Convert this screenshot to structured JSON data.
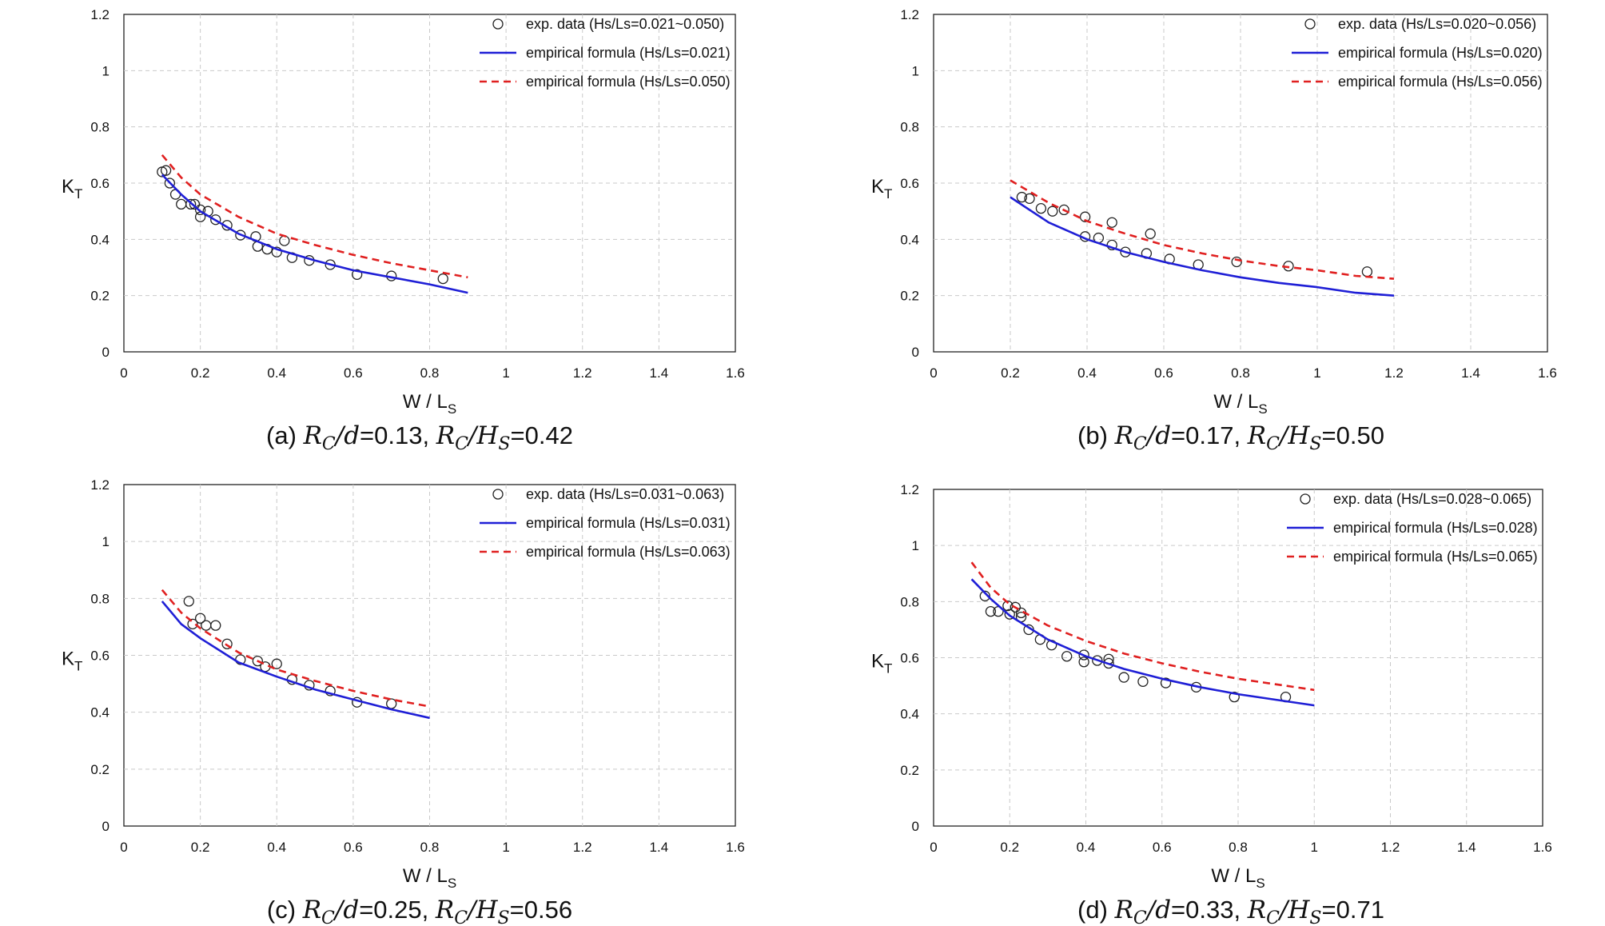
{
  "chart_data": [
    {
      "type": "scatter",
      "panel_label": "(a)",
      "caption": {
        "rc_d": "0.13",
        "rc_hs": "0.42"
      },
      "xlabel": {
        "main": "W / L",
        "sub": "S"
      },
      "ylabel": {
        "main": "K",
        "sub": "T"
      },
      "xlim": [
        0,
        1.6
      ],
      "ylim": [
        0,
        1.2
      ],
      "xticks": [
        "0",
        "0.2",
        "0.4",
        "0.6",
        "0.8",
        "1",
        "1.2",
        "1.4",
        "1.6"
      ],
      "yticks": [
        "0",
        "0.2",
        "0.4",
        "0.6",
        "0.8",
        "1",
        "1.2"
      ],
      "grid": true,
      "legend_position": "top-right",
      "series": [
        {
          "name": "exp. data (Hs/Ls=0.021~0.050)",
          "kind": "markers",
          "x": [
            0.1,
            0.11,
            0.12,
            0.135,
            0.15,
            0.175,
            0.185,
            0.2,
            0.2,
            0.22,
            0.24,
            0.27,
            0.305,
            0.345,
            0.35,
            0.375,
            0.4,
            0.42,
            0.44,
            0.485,
            0.54,
            0.61,
            0.7,
            0.835
          ],
          "y": [
            0.64,
            0.645,
            0.6,
            0.56,
            0.525,
            0.525,
            0.525,
            0.505,
            0.48,
            0.5,
            0.47,
            0.45,
            0.415,
            0.41,
            0.375,
            0.365,
            0.355,
            0.395,
            0.335,
            0.325,
            0.31,
            0.275,
            0.27,
            0.26
          ]
        },
        {
          "name": "empirical formula (Hs/Ls=0.021)",
          "kind": "line",
          "color": "#1f1fd6",
          "x": [
            0.1,
            0.15,
            0.2,
            0.3,
            0.4,
            0.5,
            0.6,
            0.7,
            0.8,
            0.9
          ],
          "y": [
            0.63,
            0.56,
            0.5,
            0.42,
            0.365,
            0.325,
            0.29,
            0.265,
            0.24,
            0.21
          ]
        },
        {
          "name": "empirical formula (Hs/Ls=0.050)",
          "kind": "dashed",
          "color": "#e02020",
          "x": [
            0.1,
            0.15,
            0.2,
            0.3,
            0.4,
            0.5,
            0.6,
            0.7,
            0.8,
            0.9
          ],
          "y": [
            0.7,
            0.62,
            0.56,
            0.48,
            0.42,
            0.38,
            0.345,
            0.315,
            0.29,
            0.265
          ]
        }
      ]
    },
    {
      "type": "scatter",
      "panel_label": "(b)",
      "caption": {
        "rc_d": "0.17",
        "rc_hs": "0.50"
      },
      "xlabel": {
        "main": "W / L",
        "sub": "S"
      },
      "ylabel": {
        "main": "K",
        "sub": "T"
      },
      "xlim": [
        0,
        1.6
      ],
      "ylim": [
        0,
        1.2
      ],
      "xticks": [
        "0",
        "0.2",
        "0.4",
        "0.6",
        "0.8",
        "1",
        "1.2",
        "1.4",
        "1.6"
      ],
      "yticks": [
        "0",
        "0.2",
        "0.4",
        "0.6",
        "0.8",
        "1",
        "1.2"
      ],
      "grid": true,
      "legend_position": "top-right",
      "series": [
        {
          "name": "exp. data (Hs/Ls=0.020~0.056)",
          "kind": "markers",
          "x": [
            0.23,
            0.25,
            0.28,
            0.31,
            0.34,
            0.395,
            0.395,
            0.43,
            0.465,
            0.465,
            0.5,
            0.555,
            0.565,
            0.615,
            0.69,
            0.79,
            0.925,
            1.13
          ],
          "y": [
            0.55,
            0.545,
            0.51,
            0.5,
            0.505,
            0.48,
            0.41,
            0.405,
            0.46,
            0.38,
            0.355,
            0.35,
            0.42,
            0.33,
            0.31,
            0.32,
            0.305,
            0.285
          ]
        },
        {
          "name": "empirical formula (Hs/Ls=0.020)",
          "kind": "line",
          "color": "#1f1fd6",
          "x": [
            0.2,
            0.3,
            0.4,
            0.5,
            0.6,
            0.7,
            0.8,
            0.9,
            1.0,
            1.1,
            1.2
          ],
          "y": [
            0.55,
            0.46,
            0.4,
            0.355,
            0.32,
            0.29,
            0.265,
            0.245,
            0.23,
            0.21,
            0.2
          ]
        },
        {
          "name": "empirical formula (Hs/Ls=0.056)",
          "kind": "dashed",
          "color": "#e02020",
          "x": [
            0.2,
            0.3,
            0.4,
            0.5,
            0.6,
            0.7,
            0.8,
            0.9,
            1.0,
            1.1,
            1.2
          ],
          "y": [
            0.61,
            0.53,
            0.465,
            0.42,
            0.38,
            0.35,
            0.325,
            0.305,
            0.29,
            0.27,
            0.26
          ]
        }
      ]
    },
    {
      "type": "scatter",
      "panel_label": "(c)",
      "caption": {
        "rc_d": "0.25",
        "rc_hs": "0.56"
      },
      "xlabel": {
        "main": "W / L",
        "sub": "S"
      },
      "ylabel": {
        "main": "K",
        "sub": "T"
      },
      "xlim": [
        0,
        1.6
      ],
      "ylim": [
        0,
        1.2
      ],
      "xticks": [
        "0",
        "0.2",
        "0.4",
        "0.6",
        "0.8",
        "1",
        "1.2",
        "1.4",
        "1.6"
      ],
      "yticks": [
        "0",
        "0.2",
        "0.4",
        "0.6",
        "0.8",
        "1",
        "1.2"
      ],
      "grid": true,
      "legend_position": "top-right",
      "series": [
        {
          "name": "exp. data (Hs/Ls=0.031~0.063)",
          "kind": "markers",
          "x": [
            0.17,
            0.18,
            0.2,
            0.215,
            0.24,
            0.27,
            0.305,
            0.35,
            0.37,
            0.4,
            0.44,
            0.485,
            0.54,
            0.61,
            0.7
          ],
          "y": [
            0.79,
            0.71,
            0.73,
            0.705,
            0.705,
            0.64,
            0.585,
            0.58,
            0.56,
            0.57,
            0.515,
            0.495,
            0.475,
            0.435,
            0.43
          ]
        },
        {
          "name": "empirical formula (Hs/Ls=0.031)",
          "kind": "line",
          "color": "#1f1fd6",
          "x": [
            0.1,
            0.15,
            0.2,
            0.3,
            0.4,
            0.5,
            0.6,
            0.7,
            0.8
          ],
          "y": [
            0.79,
            0.71,
            0.66,
            0.575,
            0.525,
            0.48,
            0.445,
            0.41,
            0.38
          ]
        },
        {
          "name": "empirical formula (Hs/Ls=0.063)",
          "kind": "dashed",
          "color": "#e02020",
          "x": [
            0.1,
            0.15,
            0.2,
            0.3,
            0.4,
            0.5,
            0.6,
            0.7,
            0.8
          ],
          "y": [
            0.83,
            0.75,
            0.695,
            0.61,
            0.55,
            0.51,
            0.475,
            0.445,
            0.42
          ]
        }
      ]
    },
    {
      "type": "scatter",
      "panel_label": "(d)",
      "caption": {
        "rc_d": "0.33",
        "rc_hs": "0.71"
      },
      "xlabel": {
        "main": "W / L",
        "sub": "S"
      },
      "ylabel": {
        "main": "K",
        "sub": "T"
      },
      "xlim": [
        0,
        1.6
      ],
      "ylim": [
        0,
        1.2
      ],
      "xticks": [
        "0",
        "0.2",
        "0.4",
        "0.6",
        "0.8",
        "1",
        "1.2",
        "1.4",
        "1.6"
      ],
      "yticks": [
        "0",
        "0.2",
        "0.4",
        "0.6",
        "0.8",
        "1",
        "1.2"
      ],
      "grid": true,
      "legend_position": "top-right",
      "series": [
        {
          "name": "exp. data (Hs/Ls=0.028~0.065)",
          "kind": "markers",
          "x": [
            0.135,
            0.15,
            0.17,
            0.195,
            0.2,
            0.215,
            0.23,
            0.23,
            0.25,
            0.28,
            0.31,
            0.35,
            0.395,
            0.395,
            0.43,
            0.46,
            0.46,
            0.5,
            0.55,
            0.61,
            0.69,
            0.79,
            0.925
          ],
          "y": [
            0.82,
            0.765,
            0.765,
            0.785,
            0.755,
            0.78,
            0.76,
            0.745,
            0.7,
            0.665,
            0.645,
            0.605,
            0.61,
            0.585,
            0.59,
            0.595,
            0.58,
            0.53,
            0.515,
            0.51,
            0.495,
            0.46,
            0.46
          ]
        },
        {
          "name": "empirical formula (Hs/Ls=0.028)",
          "kind": "line",
          "color": "#1f1fd6",
          "x": [
            0.1,
            0.15,
            0.2,
            0.3,
            0.4,
            0.5,
            0.6,
            0.7,
            0.8,
            0.9,
            1.0
          ],
          "y": [
            0.88,
            0.81,
            0.75,
            0.665,
            0.605,
            0.56,
            0.525,
            0.495,
            0.47,
            0.45,
            0.43
          ]
        },
        {
          "name": "empirical formula (Hs/Ls=0.065)",
          "kind": "dashed",
          "color": "#e02020",
          "x": [
            0.1,
            0.15,
            0.2,
            0.3,
            0.4,
            0.5,
            0.6,
            0.7,
            0.8,
            0.9,
            1.0
          ],
          "y": [
            0.94,
            0.85,
            0.79,
            0.715,
            0.66,
            0.615,
            0.58,
            0.55,
            0.525,
            0.505,
            0.485
          ]
        }
      ]
    }
  ]
}
